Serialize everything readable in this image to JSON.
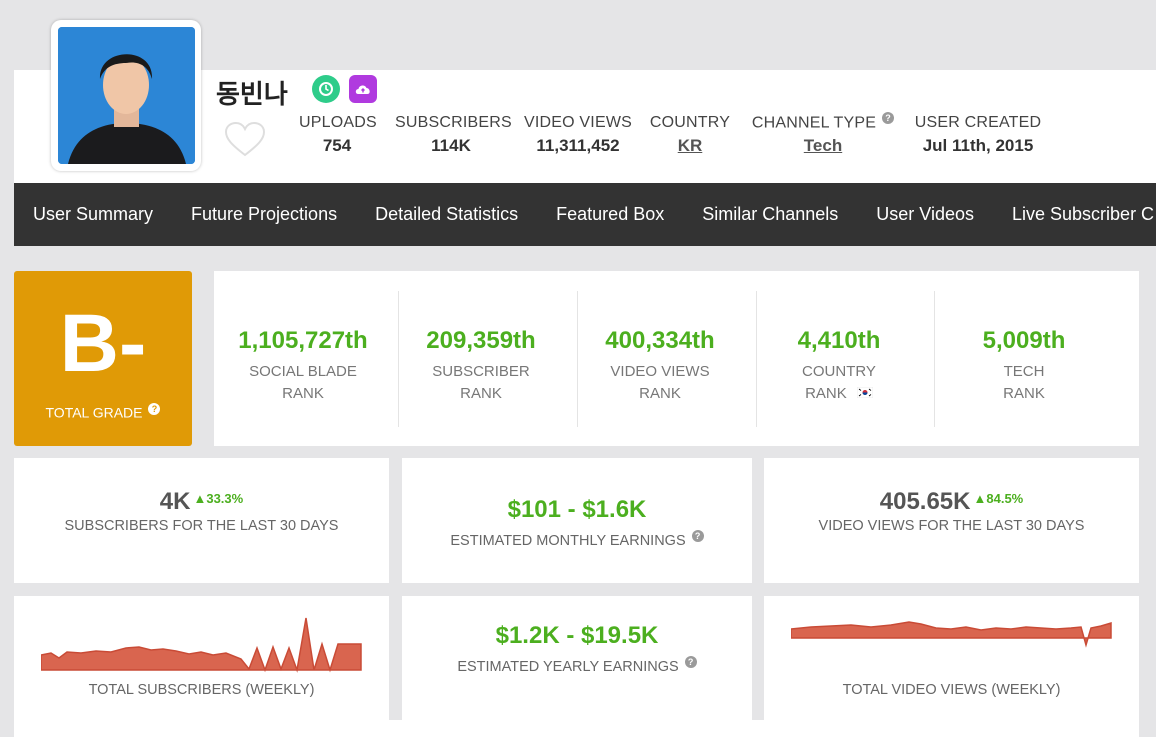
{
  "channel": {
    "name": "동빈나"
  },
  "stats": [
    {
      "label": "UPLOADS",
      "value": "754"
    },
    {
      "label": "SUBSCRIBERS",
      "value": "114K"
    },
    {
      "label": "VIDEO VIEWS",
      "value": "11,311,452"
    },
    {
      "label": "COUNTRY",
      "value": "KR"
    },
    {
      "label": "CHANNEL TYPE",
      "value": "Tech"
    },
    {
      "label": "USER CREATED",
      "value": "Jul 11th, 2015"
    }
  ],
  "nav": [
    "User Summary",
    "Future Projections",
    "Detailed Statistics",
    "Featured Box",
    "Similar Channels",
    "User Videos",
    "Live Subscriber C"
  ],
  "grade": {
    "letter": "B-",
    "label": "TOTAL GRADE"
  },
  "ranks": [
    {
      "value": "1,105,727th",
      "line1": "SOCIAL BLADE",
      "line2": "RANK"
    },
    {
      "value": "209,359th",
      "line1": "SUBSCRIBER",
      "line2": "RANK"
    },
    {
      "value": "400,334th",
      "line1": "VIDEO VIEWS",
      "line2": "RANK"
    },
    {
      "value": "4,410th",
      "line1": "COUNTRY",
      "line2": "RANK"
    },
    {
      "value": "5,009th",
      "line1": "TECH",
      "line2": "RANK"
    }
  ],
  "cards": {
    "subs30": {
      "value": "4K",
      "delta": "33.3%",
      "label": "SUBSCRIBERS FOR THE LAST 30 DAYS"
    },
    "monthly": {
      "value": "$101 - $1.6K",
      "label": "ESTIMATED MONTHLY EARNINGS"
    },
    "views30": {
      "value": "405.65K",
      "delta": "84.5%",
      "label": "VIDEO VIEWS FOR THE LAST 30 DAYS"
    },
    "subsWeekly": {
      "label": "TOTAL SUBSCRIBERS (WEEKLY)"
    },
    "yearly": {
      "value": "$1.2K - $19.5K",
      "label": "ESTIMATED YEARLY EARNINGS"
    },
    "viewsWeekly": {
      "label": "TOTAL VIDEO VIEWS (WEEKLY)"
    }
  },
  "colors": {
    "accent_green": "#4caf1f",
    "grade_orange": "#e09a06",
    "nav_bg": "#333333",
    "sparkline": "#d9654f"
  },
  "icons": [
    "clock-badge-icon",
    "cloud-upload-badge-icon",
    "heart-icon",
    "help-icon",
    "korea-flag-icon"
  ]
}
